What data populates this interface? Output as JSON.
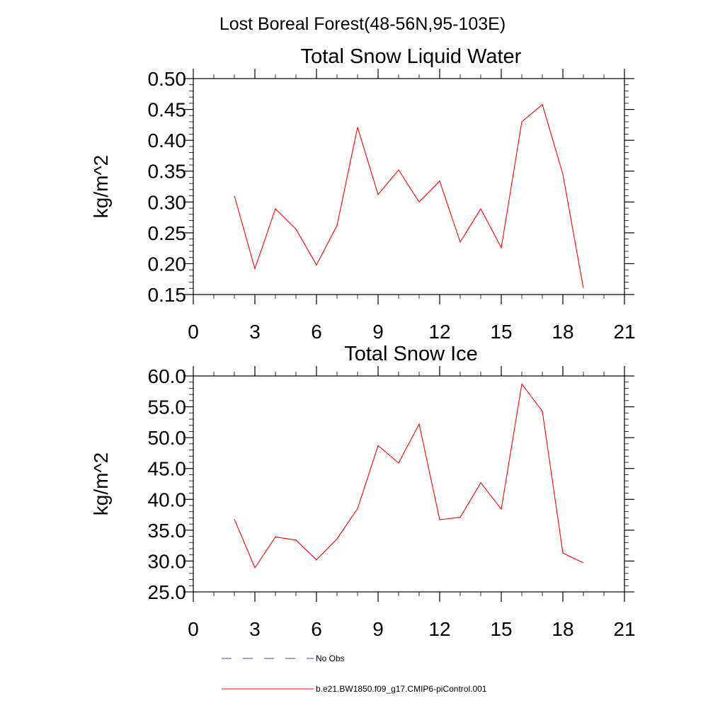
{
  "figure": {
    "title": "Lost Boreal Forest(48-56N,95-103E)"
  },
  "chart_data": [
    {
      "type": "line",
      "title": "Total Snow Liquid Water",
      "xlabel": "",
      "ylabel": "kg/m^2",
      "xlim": [
        0,
        21
      ],
      "ylim": [
        0.15,
        0.5
      ],
      "xticks": [
        0,
        3,
        6,
        9,
        12,
        15,
        18,
        21
      ],
      "xtick_labels": [
        "0",
        "3",
        "6",
        "9",
        "12",
        "15",
        "18",
        "21"
      ],
      "yticks": [
        0.15,
        0.2,
        0.25,
        0.3,
        0.35,
        0.4,
        0.45,
        0.5
      ],
      "ytick_labels": [
        "0.15",
        "0.20",
        "0.25",
        "0.30",
        "0.35",
        "0.40",
        "0.45",
        "0.50"
      ],
      "grid": false,
      "series": [
        {
          "name": "b.e21.BW1850.f09_g17.CMIP6-piControl.001",
          "color": "#ff0000",
          "x": [
            2,
            3,
            4,
            5,
            6,
            7,
            8,
            9,
            10,
            11,
            12,
            13,
            14,
            15,
            16,
            17,
            18,
            19
          ],
          "y": [
            0.31,
            0.192,
            0.289,
            0.256,
            0.198,
            0.262,
            0.421,
            0.312,
            0.352,
            0.3,
            0.334,
            0.235,
            0.289,
            0.226,
            0.43,
            0.458,
            0.345,
            0.16
          ]
        }
      ]
    },
    {
      "type": "line",
      "title": "Total Snow Ice",
      "xlabel": "",
      "ylabel": "kg/m^2",
      "xlim": [
        0,
        21
      ],
      "ylim": [
        25,
        60
      ],
      "xticks": [
        0,
        3,
        6,
        9,
        12,
        15,
        18,
        21
      ],
      "xtick_labels": [
        "0",
        "3",
        "6",
        "9",
        "12",
        "15",
        "18",
        "21"
      ],
      "yticks": [
        25,
        30,
        35,
        40,
        45,
        50,
        55,
        60
      ],
      "ytick_labels": [
        "25.0",
        "30.0",
        "35.0",
        "40.0",
        "45.0",
        "50.0",
        "55.0",
        "60.0"
      ],
      "grid": false,
      "series": [
        {
          "name": "b.e21.BW1850.f09_g17.CMIP6-piControl.001",
          "color": "#ff0000",
          "x": [
            2,
            3,
            4,
            5,
            6,
            7,
            8,
            9,
            10,
            11,
            12,
            13,
            14,
            15,
            16,
            17,
            18,
            19
          ],
          "y": [
            36.8,
            28.9,
            33.9,
            33.4,
            30.2,
            33.6,
            38.5,
            48.7,
            45.9,
            52.2,
            36.7,
            37.1,
            42.7,
            38.4,
            58.7,
            54.3,
            31.3,
            29.7
          ]
        }
      ]
    }
  ],
  "legend": {
    "placement": "bottom-left",
    "entries": [
      {
        "label": "No Obs",
        "style": "dashed",
        "color": "#4a4a8c"
      },
      {
        "label": "b.e21.BW1850.f09_g17.CMIP6-piControl.001",
        "style": "solid",
        "color": "#ff0000"
      }
    ]
  }
}
